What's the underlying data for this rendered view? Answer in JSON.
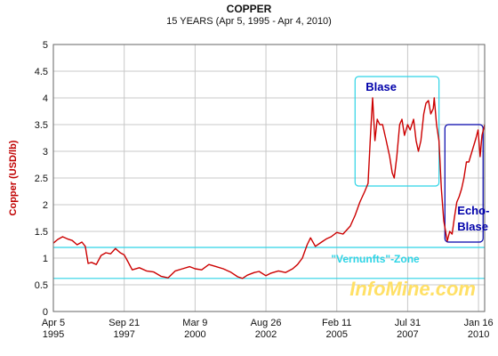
{
  "chart_data": {
    "type": "line",
    "title": "COPPER",
    "subtitle": "15 YEARS (Apr 5, 1995 - Apr 4, 2010)",
    "ylabel": "Copper (USD/lb)",
    "xlabel": "",
    "ylim": [
      0,
      5
    ],
    "xlim": [
      "1995-04-05",
      "2010-04-04"
    ],
    "grid": true,
    "y_ticks": [
      0,
      0.5,
      1,
      1.5,
      2,
      2.5,
      3,
      3.5,
      4,
      4.5,
      5
    ],
    "x_ticks": [
      {
        "date": "1995-04-05",
        "line1": "Apr 5",
        "line2": "1995"
      },
      {
        "date": "1997-09-21",
        "line1": "Sep 21",
        "line2": "1997"
      },
      {
        "date": "2000-03-09",
        "line1": "Mar 9",
        "line2": "2000"
      },
      {
        "date": "2002-08-26",
        "line1": "Aug 26",
        "line2": "2002"
      },
      {
        "date": "2005-02-11",
        "line1": "Feb 11",
        "line2": "2005"
      },
      {
        "date": "2007-07-31",
        "line1": "Jul 31",
        "line2": "2007"
      },
      {
        "date": "2010-01-16",
        "line1": "Jan 16",
        "line2": "2010"
      }
    ],
    "series": [
      {
        "color": "#cc0000",
        "points": [
          [
            "1995-04-05",
            1.28
          ],
          [
            "1995-06-01",
            1.35
          ],
          [
            "1995-08-01",
            1.4
          ],
          [
            "1995-10-01",
            1.36
          ],
          [
            "1995-12-01",
            1.33
          ],
          [
            "1996-02-01",
            1.25
          ],
          [
            "1996-04-01",
            1.3
          ],
          [
            "1996-05-15",
            1.22
          ],
          [
            "1996-06-20",
            0.9
          ],
          [
            "1996-08-01",
            0.92
          ],
          [
            "1996-10-01",
            0.88
          ],
          [
            "1996-12-01",
            1.05
          ],
          [
            "1997-02-01",
            1.1
          ],
          [
            "1997-04-01",
            1.08
          ],
          [
            "1997-06-01",
            1.18
          ],
          [
            "1997-08-01",
            1.1
          ],
          [
            "1997-09-21",
            1.06
          ],
          [
            "1997-11-01",
            0.95
          ],
          [
            "1998-01-01",
            0.78
          ],
          [
            "1998-04-01",
            0.82
          ],
          [
            "1998-07-01",
            0.76
          ],
          [
            "1998-10-01",
            0.74
          ],
          [
            "1999-01-01",
            0.66
          ],
          [
            "1999-04-01",
            0.63
          ],
          [
            "1999-07-01",
            0.76
          ],
          [
            "1999-10-01",
            0.8
          ],
          [
            "2000-01-01",
            0.84
          ],
          [
            "2000-03-09",
            0.8
          ],
          [
            "2000-06-01",
            0.78
          ],
          [
            "2000-09-01",
            0.88
          ],
          [
            "2000-12-01",
            0.84
          ],
          [
            "2001-03-01",
            0.8
          ],
          [
            "2001-06-01",
            0.74
          ],
          [
            "2001-09-01",
            0.65
          ],
          [
            "2001-11-01",
            0.62
          ],
          [
            "2002-01-01",
            0.68
          ],
          [
            "2002-04-01",
            0.73
          ],
          [
            "2002-06-01",
            0.75
          ],
          [
            "2002-08-26",
            0.67
          ],
          [
            "2002-11-01",
            0.72
          ],
          [
            "2003-02-01",
            0.76
          ],
          [
            "2003-05-01",
            0.73
          ],
          [
            "2003-08-01",
            0.8
          ],
          [
            "2003-10-01",
            0.88
          ],
          [
            "2003-12-01",
            1.0
          ],
          [
            "2004-02-01",
            1.25
          ],
          [
            "2004-03-15",
            1.38
          ],
          [
            "2004-05-15",
            1.22
          ],
          [
            "2004-08-01",
            1.3
          ],
          [
            "2004-10-01",
            1.36
          ],
          [
            "2004-12-01",
            1.4
          ],
          [
            "2005-02-11",
            1.48
          ],
          [
            "2005-05-01",
            1.45
          ],
          [
            "2005-08-01",
            1.6
          ],
          [
            "2005-10-01",
            1.8
          ],
          [
            "2005-12-01",
            2.05
          ],
          [
            "2006-02-01",
            2.25
          ],
          [
            "2006-03-15",
            2.4
          ],
          [
            "2006-04-15",
            3.3
          ],
          [
            "2006-05-12",
            4.0
          ],
          [
            "2006-06-10",
            3.2
          ],
          [
            "2006-07-10",
            3.6
          ],
          [
            "2006-08-10",
            3.5
          ],
          [
            "2006-09-15",
            3.5
          ],
          [
            "2006-11-01",
            3.2
          ],
          [
            "2006-12-15",
            2.9
          ],
          [
            "2007-01-15",
            2.6
          ],
          [
            "2007-02-10",
            2.5
          ],
          [
            "2007-03-15",
            2.9
          ],
          [
            "2007-04-20",
            3.5
          ],
          [
            "2007-05-20",
            3.6
          ],
          [
            "2007-06-20",
            3.3
          ],
          [
            "2007-07-31",
            3.5
          ],
          [
            "2007-09-01",
            3.4
          ],
          [
            "2007-10-15",
            3.6
          ],
          [
            "2007-11-15",
            3.2
          ],
          [
            "2007-12-15",
            3.0
          ],
          [
            "2008-01-15",
            3.2
          ],
          [
            "2008-02-20",
            3.7
          ],
          [
            "2008-03-20",
            3.9
          ],
          [
            "2008-04-20",
            3.95
          ],
          [
            "2008-05-20",
            3.7
          ],
          [
            "2008-06-20",
            3.8
          ],
          [
            "2008-07-03",
            4.0
          ],
          [
            "2008-08-01",
            3.5
          ],
          [
            "2008-09-01",
            3.2
          ],
          [
            "2008-10-01",
            2.3
          ],
          [
            "2008-11-01",
            1.7
          ],
          [
            "2008-12-15",
            1.32
          ],
          [
            "2009-01-15",
            1.5
          ],
          [
            "2009-02-15",
            1.45
          ],
          [
            "2009-03-15",
            1.75
          ],
          [
            "2009-04-15",
            2.05
          ],
          [
            "2009-05-15",
            2.15
          ],
          [
            "2009-06-15",
            2.3
          ],
          [
            "2009-07-15",
            2.5
          ],
          [
            "2009-08-15",
            2.8
          ],
          [
            "2009-09-15",
            2.8
          ],
          [
            "2009-10-15",
            2.95
          ],
          [
            "2009-11-15",
            3.1
          ],
          [
            "2009-12-15",
            3.25
          ],
          [
            "2010-01-10",
            3.4
          ],
          [
            "2010-02-05",
            2.9
          ],
          [
            "2010-03-01",
            3.3
          ],
          [
            "2010-04-04",
            3.5
          ]
        ]
      }
    ],
    "annotations": {
      "blase_label": "Blase",
      "echo_label_line1": "Echo-",
      "echo_label_line2": "Blase",
      "zone_label": "\"Vernunfts\"-Zone",
      "zone_lines": [
        1.2,
        0.62
      ],
      "blase_box": {
        "x0": "2005-10-01",
        "x1": "2008-09-01",
        "y0": 2.35,
        "y1": 4.4
      },
      "echo_box": {
        "x0": "2008-11-15",
        "x1": "2010-03-15",
        "y0": 1.3,
        "y1": 3.5
      }
    },
    "colors": {
      "line": "#cc0000",
      "grid": "#c8c8c8",
      "cyan": "#2dd4e6",
      "blue_box": "#0000aa",
      "ylabel": "#c00000",
      "brand": "#ffe066"
    }
  },
  "branding": {
    "watermark": "InfoMine.com"
  }
}
